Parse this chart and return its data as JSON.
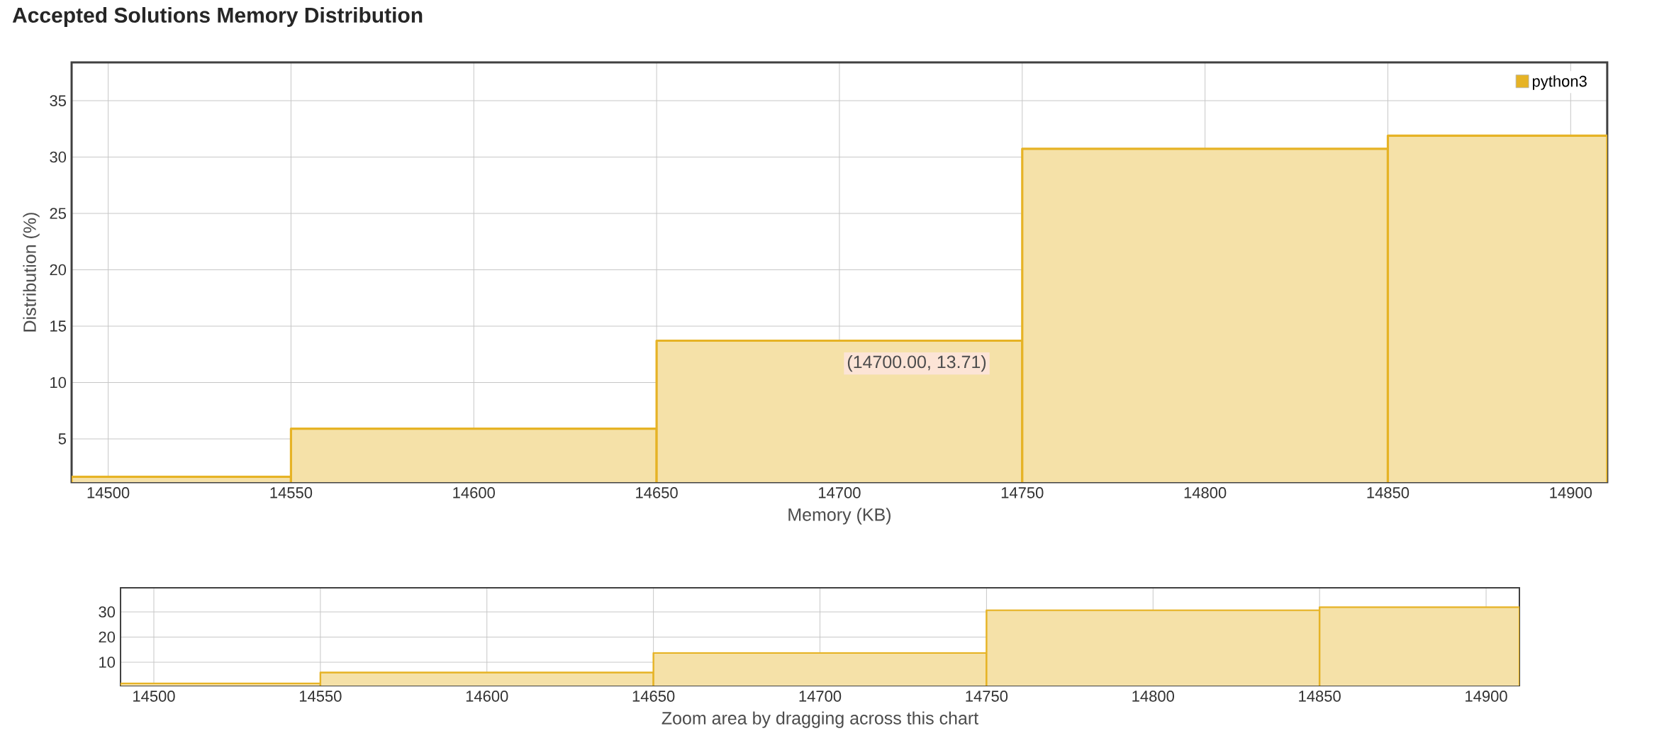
{
  "chart_data": [
    {
      "type": "histogram",
      "title": "Accepted Solutions Memory Distribution",
      "xlabel": "Memory (KB)",
      "ylabel": "Distribution (%)",
      "bins": [
        14490,
        14550,
        14650,
        14750,
        14850,
        14910
      ],
      "series": [
        {
          "name": "python3",
          "color": "#e6b325",
          "values": [
            1.64,
            5.9,
            13.71,
            30.74,
            31.9
          ]
        }
      ],
      "xlim": [
        14490,
        14910
      ],
      "ylim": [
        1.16,
        38.4
      ],
      "xticks": [
        14500,
        14550,
        14600,
        14650,
        14700,
        14750,
        14800,
        14850,
        14900
      ],
      "yticks": [
        5,
        10,
        15,
        20,
        25,
        30,
        35
      ],
      "grid": true,
      "legend": "top right",
      "annotations": [
        {
          "text": "(14700.00, 13.71)",
          "x": 14700,
          "y": 13.71
        }
      ]
    },
    {
      "type": "histogram",
      "xlabel": "Zoom area by dragging across this chart",
      "bins": [
        14490,
        14550,
        14650,
        14750,
        14850,
        14910
      ],
      "series": [
        {
          "color": "#e6b325",
          "values": [
            1.6,
            5.9,
            13.7,
            30.7,
            31.9
          ]
        }
      ],
      "xlim": [
        14490,
        14910
      ],
      "ylim": [
        0.7,
        39.6
      ],
      "xticks": [
        14500,
        14550,
        14600,
        14650,
        14700,
        14750,
        14800,
        14850,
        14900
      ],
      "yticks": [
        10,
        20,
        30
      ],
      "grid": true
    }
  ]
}
